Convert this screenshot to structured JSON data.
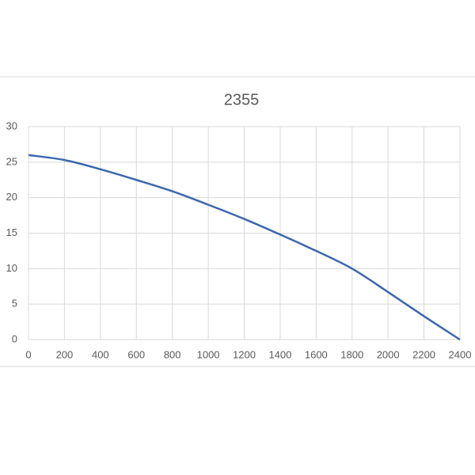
{
  "chart_data": {
    "type": "line",
    "title": "2355",
    "x": [
      0,
      200,
      400,
      600,
      800,
      1000,
      1200,
      1400,
      1600,
      1800,
      2000,
      2200,
      2400
    ],
    "series": [
      {
        "color": "#3b67ae",
        "values": [
          26,
          25.3,
          24,
          22.5,
          20.9,
          19,
          17,
          14.8,
          12.5,
          10,
          6.7,
          3.3,
          0
        ]
      }
    ],
    "xlim": [
      0,
      2400
    ],
    "xticks": [
      0,
      200,
      400,
      600,
      800,
      1000,
      1200,
      1400,
      1600,
      1800,
      2000,
      2200,
      2400
    ],
    "ylim": [
      0,
      30
    ],
    "yticks": [
      0,
      5,
      10,
      15,
      20,
      25,
      30
    ],
    "grid": true
  }
}
